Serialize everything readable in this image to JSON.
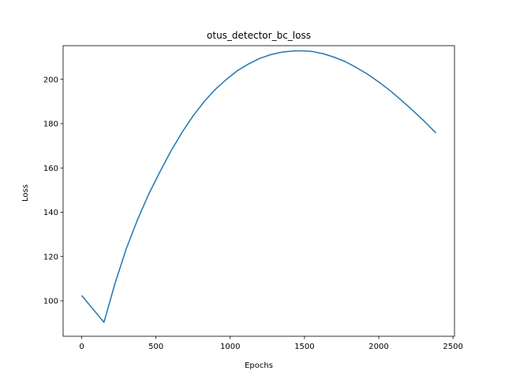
{
  "chart_data": {
    "type": "line",
    "title": "otus_detector_bc_loss",
    "xlabel": "Epochs",
    "ylabel": "Loss",
    "xlim": [
      -125,
      2510
    ],
    "ylim": [
      84.0,
      215.2
    ],
    "xticks": [
      0,
      500,
      1000,
      1500,
      2000,
      2500
    ],
    "yticks": [
      100,
      120,
      140,
      160,
      180,
      200
    ],
    "grid": false,
    "legend": "none",
    "line_color": "#1f77b4",
    "series": [
      {
        "x": [
          0,
          150,
          225,
          300,
          375,
          450,
          525,
          600,
          675,
          750,
          825,
          900,
          975,
          1050,
          1125,
          1200,
          1275,
          1350,
          1425,
          1475,
          1550,
          1625,
          1700,
          1775,
          1850,
          1925,
          2000,
          2075,
          2150,
          2225,
          2300,
          2385
        ],
        "y": [
          102.4,
          90.3,
          108.0,
          123.5,
          136.5,
          148.0,
          158.0,
          167.5,
          176.0,
          183.5,
          190.0,
          195.5,
          200.0,
          204.0,
          207.0,
          209.5,
          211.2,
          212.3,
          212.8,
          212.9,
          212.6,
          211.6,
          210.0,
          208.0,
          205.3,
          202.3,
          198.8,
          195.0,
          190.7,
          186.2,
          181.5,
          175.8
        ]
      }
    ]
  }
}
